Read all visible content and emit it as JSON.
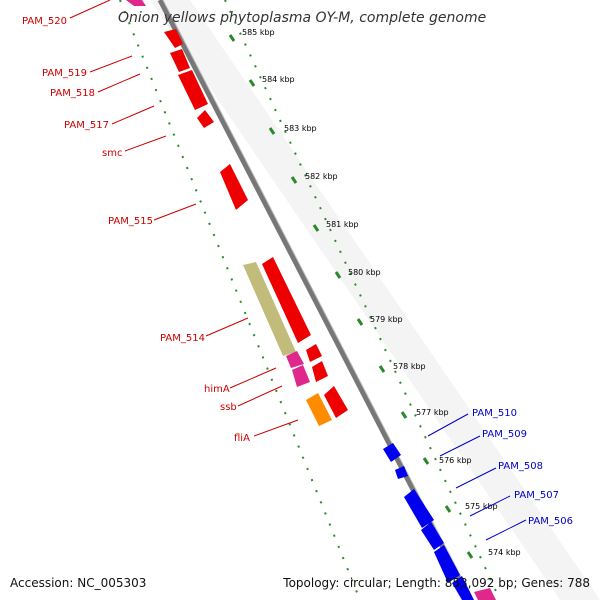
{
  "title": "Onion yellows phytoplasma OY-M, complete genome",
  "footer": {
    "accession": "Accession: NC_005303",
    "summary": "Topology: circular; Length: 853,092 bp; Genes: 788"
  },
  "colors": {
    "forward_gene": "#ee0000",
    "reverse_gene": "#0000ee",
    "rna": "#e0288c",
    "special": "#ff8c00",
    "olive": "#c2bc7a",
    "backbone": "#888888",
    "kbp_ticks": "#2a8a2a",
    "label_red": "#cc0000",
    "label_blue": "#0000cc"
  },
  "kbp_ticks": [
    "585 kbp",
    "584 kbp",
    "583 kbp",
    "582 kbp",
    "581 kbp",
    "580 kbp",
    "579 kbp",
    "578 kbp",
    "577 kbp",
    "576 kbp",
    "575 kbp",
    "574 kbp"
  ],
  "gene_labels_left": [
    "PAM_520",
    "PAM_519",
    "PAM_518",
    "PAM_517",
    "smc",
    "PAM_515",
    "PAM_514",
    "himA",
    "ssb",
    "fliA"
  ],
  "gene_labels_right": [
    "PAM_510",
    "PAM_509",
    "PAM_508",
    "PAM_507",
    "PAM_506"
  ]
}
